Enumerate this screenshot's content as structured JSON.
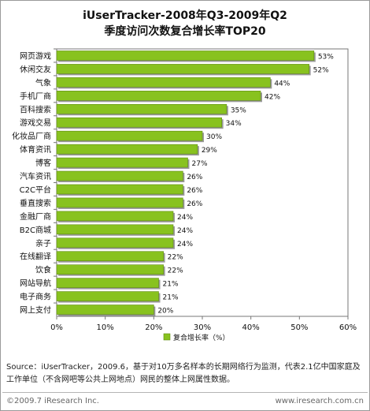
{
  "chart_data": {
    "type": "bar",
    "orientation": "horizontal",
    "title_line1": "iUserTracker-2008年Q3-2009年Q2",
    "title_line2": "季度访问次数复合增长率TOP20",
    "categories": [
      "网页游戏",
      "休闲交友",
      "气象",
      "手机厂商",
      "百科搜索",
      "游戏交易",
      "化妆品厂商",
      "体育资讯",
      "博客",
      "汽车资讯",
      "C2C平台",
      "垂直搜索",
      "金融厂商",
      "B2C商城",
      "亲子",
      "在线翻译",
      "饮食",
      "网站导航",
      "电子商务",
      "网上支付"
    ],
    "values": [
      53,
      52,
      44,
      42,
      35,
      34,
      30,
      29,
      27,
      26,
      26,
      26,
      24,
      24,
      24,
      22,
      22,
      21,
      21,
      20
    ],
    "value_labels": [
      "53%",
      "52%",
      "44%",
      "42%",
      "35%",
      "34%",
      "30%",
      "29%",
      "27%",
      "26%",
      "26%",
      "26%",
      "24%",
      "24%",
      "24%",
      "22%",
      "22%",
      "21%",
      "21%",
      "20%"
    ],
    "xlim": [
      0,
      60
    ],
    "x_ticks": [
      "0%",
      "10%",
      "20%",
      "30%",
      "40%",
      "50%",
      "60%"
    ],
    "series": [
      {
        "name": "复合增长率（%）",
        "color": "#88c21f"
      }
    ],
    "legend_position": "bottom",
    "grid": false
  },
  "footer": {
    "source": "Source：iUserTracker，2009.6，基于对10万多名样本的长期网络行为监测，代表2.1亿中国家庭及工作单位（不含网吧等公共上网地点）网民的整体上网属性数据。",
    "copyright": "©2009.7 iResearch Inc.",
    "website": "www.iresearch.com.cn"
  }
}
